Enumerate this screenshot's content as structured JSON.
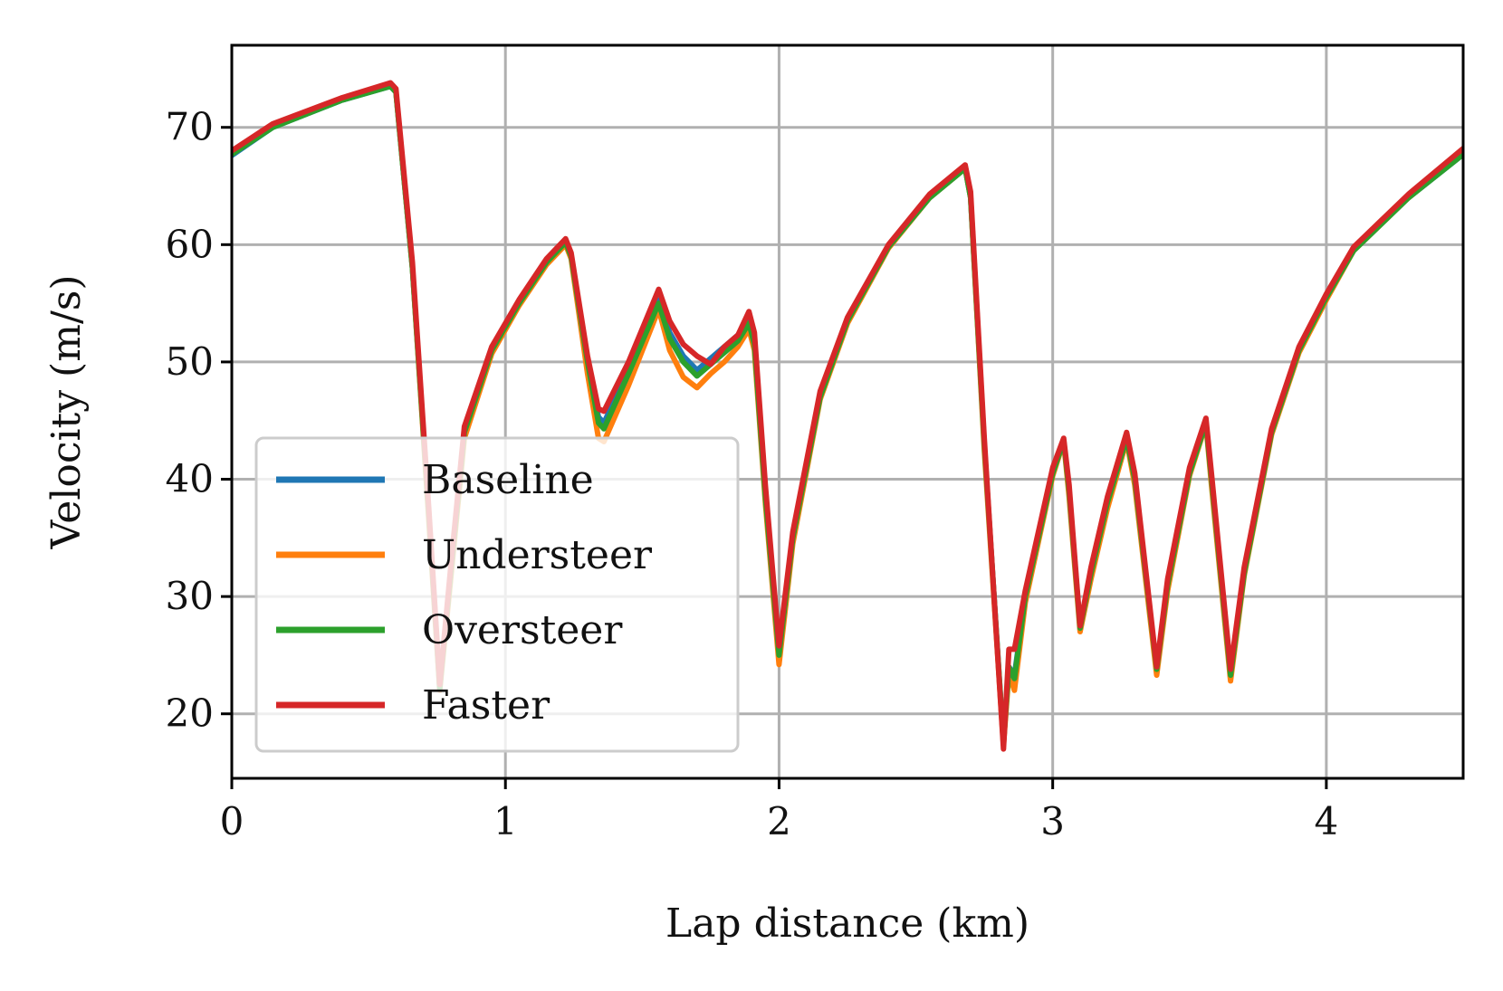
{
  "chart_data": {
    "type": "line",
    "title": "",
    "xlabel": "Lap distance (km)",
    "ylabel": "Velocity (m/s)",
    "xlim": [
      0,
      4.5
    ],
    "ylim": [
      14.5,
      77
    ],
    "x_ticks": [
      0,
      1,
      2,
      3,
      4
    ],
    "y_ticks": [
      20,
      30,
      40,
      50,
      60,
      70
    ],
    "grid": true,
    "legend_position": "lower-left",
    "colors": {
      "Baseline": "#1f77b4",
      "Understeer": "#ff7f0e",
      "Oversteer": "#2ca02c",
      "Faster": "#d62728"
    },
    "series": [
      {
        "name": "Baseline",
        "x": [
          0,
          0.15,
          0.4,
          0.58,
          0.6,
          0.66,
          0.72,
          0.76,
          0.8,
          0.85,
          0.95,
          1.05,
          1.15,
          1.22,
          1.24,
          1.3,
          1.34,
          1.36,
          1.45,
          1.56,
          1.6,
          1.65,
          1.7,
          1.75,
          1.8,
          1.85,
          1.89,
          1.91,
          1.95,
          2.0,
          2.05,
          2.15,
          2.25,
          2.4,
          2.55,
          2.68,
          2.7,
          2.75,
          2.82,
          2.84,
          2.86,
          2.9,
          3.0,
          3.04,
          3.06,
          3.1,
          3.14,
          3.2,
          3.27,
          3.3,
          3.38,
          3.42,
          3.5,
          3.56,
          3.58,
          3.65,
          3.7,
          3.8,
          3.9,
          4.0,
          4.1,
          4.3,
          4.5
        ],
        "values": [
          67.6,
          70.0,
          72.3,
          73.5,
          73.0,
          58.0,
          37.0,
          22.2,
          32.0,
          44.0,
          51.0,
          55.0,
          58.5,
          60.2,
          59.0,
          50.0,
          45.3,
          44.8,
          49.3,
          55.3,
          52.5,
          50.5,
          49.3,
          50.3,
          51.3,
          52.3,
          53.8,
          52.0,
          39.0,
          25.0,
          35.0,
          47.0,
          53.5,
          59.8,
          64.0,
          66.5,
          64.0,
          43.0,
          17.5,
          24.0,
          23.3,
          30.0,
          40.5,
          43.3,
          39.0,
          27.3,
          32.0,
          38.0,
          43.5,
          40.0,
          23.5,
          31.0,
          40.5,
          44.8,
          40.0,
          23.3,
          32.0,
          44.0,
          51.0,
          55.5,
          59.5,
          64.0,
          67.7
        ]
      },
      {
        "name": "Understeer",
        "x": [
          0,
          0.15,
          0.4,
          0.58,
          0.6,
          0.66,
          0.72,
          0.76,
          0.8,
          0.85,
          0.95,
          1.05,
          1.15,
          1.22,
          1.24,
          1.3,
          1.34,
          1.36,
          1.45,
          1.56,
          1.6,
          1.65,
          1.7,
          1.75,
          1.8,
          1.85,
          1.89,
          1.91,
          1.95,
          2.0,
          2.05,
          2.15,
          2.25,
          2.4,
          2.55,
          2.68,
          2.7,
          2.75,
          2.82,
          2.84,
          2.86,
          2.9,
          3.0,
          3.04,
          3.06,
          3.1,
          3.14,
          3.2,
          3.27,
          3.3,
          3.38,
          3.42,
          3.5,
          3.56,
          3.58,
          3.65,
          3.7,
          3.8,
          3.9,
          4.0,
          4.1,
          4.3,
          4.5
        ],
        "values": [
          67.8,
          70.1,
          72.4,
          73.6,
          73.0,
          58.0,
          36.5,
          22.0,
          31.5,
          43.5,
          50.7,
          54.8,
          58.3,
          60.0,
          58.8,
          49.0,
          43.5,
          43.2,
          48.0,
          54.5,
          51.0,
          48.7,
          47.8,
          49.0,
          50.0,
          51.3,
          52.8,
          51.0,
          38.0,
          24.2,
          34.5,
          46.8,
          53.3,
          59.7,
          64.0,
          66.5,
          64.0,
          42.5,
          17.3,
          23.5,
          22.0,
          29.5,
          40.3,
          43.2,
          38.5,
          27.0,
          31.5,
          37.5,
          43.3,
          39.5,
          23.3,
          30.5,
          40.3,
          44.7,
          39.5,
          22.8,
          31.8,
          43.8,
          50.8,
          55.3,
          59.5,
          64.0,
          67.8
        ]
      },
      {
        "name": "Oversteer",
        "x": [
          0,
          0.15,
          0.4,
          0.58,
          0.6,
          0.66,
          0.72,
          0.76,
          0.8,
          0.85,
          0.95,
          1.05,
          1.15,
          1.22,
          1.24,
          1.3,
          1.34,
          1.36,
          1.45,
          1.56,
          1.6,
          1.65,
          1.7,
          1.75,
          1.8,
          1.85,
          1.89,
          1.91,
          1.95,
          2.0,
          2.05,
          2.15,
          2.25,
          2.4,
          2.55,
          2.68,
          2.7,
          2.75,
          2.82,
          2.84,
          2.86,
          2.9,
          3.0,
          3.04,
          3.06,
          3.1,
          3.14,
          3.2,
          3.27,
          3.3,
          3.38,
          3.42,
          3.5,
          3.56,
          3.58,
          3.65,
          3.7,
          3.8,
          3.9,
          4.0,
          4.1,
          4.3,
          4.5
        ],
        "values": [
          67.7,
          70.0,
          72.3,
          73.5,
          73.0,
          58.0,
          37.0,
          22.2,
          32.0,
          44.0,
          51.0,
          55.0,
          58.5,
          60.2,
          59.0,
          50.0,
          44.8,
          44.3,
          49.0,
          55.0,
          52.0,
          50.0,
          48.8,
          49.8,
          50.8,
          51.8,
          53.3,
          51.5,
          38.5,
          25.0,
          35.0,
          47.0,
          53.5,
          59.8,
          64.0,
          66.5,
          64.0,
          43.0,
          17.5,
          24.0,
          23.0,
          30.0,
          40.5,
          43.3,
          39.0,
          27.3,
          32.0,
          38.0,
          43.5,
          40.0,
          23.8,
          31.0,
          40.5,
          44.8,
          40.0,
          23.3,
          32.0,
          44.0,
          51.0,
          55.5,
          59.5,
          64.0,
          67.7
        ]
      },
      {
        "name": "Faster",
        "x": [
          0,
          0.15,
          0.4,
          0.58,
          0.6,
          0.66,
          0.72,
          0.76,
          0.8,
          0.85,
          0.95,
          1.05,
          1.15,
          1.22,
          1.24,
          1.3,
          1.34,
          1.36,
          1.45,
          1.56,
          1.6,
          1.65,
          1.7,
          1.75,
          1.8,
          1.85,
          1.89,
          1.91,
          1.95,
          2.0,
          2.05,
          2.15,
          2.25,
          2.4,
          2.55,
          2.68,
          2.7,
          2.75,
          2.82,
          2.84,
          2.86,
          2.9,
          3.0,
          3.04,
          3.06,
          3.1,
          3.14,
          3.2,
          3.27,
          3.3,
          3.38,
          3.42,
          3.5,
          3.56,
          3.58,
          3.65,
          3.7,
          3.8,
          3.9,
          4.0,
          4.1,
          4.3,
          4.5
        ],
        "values": [
          68.0,
          70.3,
          72.5,
          73.8,
          73.3,
          58.5,
          37.5,
          22.5,
          32.5,
          44.5,
          51.3,
          55.3,
          58.8,
          60.5,
          59.3,
          50.5,
          46.0,
          45.8,
          50.0,
          56.2,
          53.5,
          51.5,
          50.5,
          49.8,
          51.3,
          52.3,
          54.3,
          52.5,
          39.5,
          25.8,
          35.5,
          47.5,
          53.8,
          60.0,
          64.3,
          66.8,
          64.5,
          43.5,
          17.0,
          25.5,
          25.5,
          30.5,
          41.0,
          43.5,
          39.5,
          27.5,
          32.5,
          38.5,
          44.0,
          40.5,
          24.0,
          31.5,
          41.0,
          45.2,
          40.5,
          23.8,
          32.5,
          44.3,
          51.3,
          55.8,
          59.8,
          64.3,
          68.2
        ]
      }
    ]
  }
}
